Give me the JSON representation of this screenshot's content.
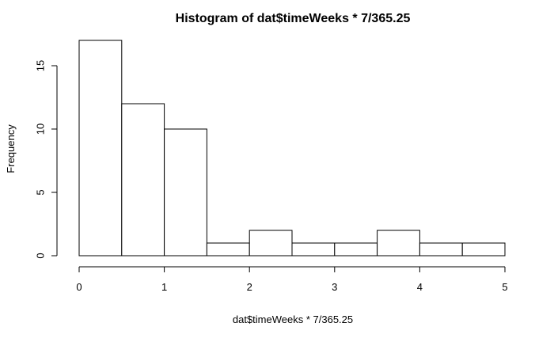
{
  "chart_data": {
    "type": "bar",
    "title": "Histogram of dat$timeWeeks * 7/365.25",
    "xlabel": "dat$timeWeeks * 7/365.25",
    "ylabel": "Frequency",
    "bins": [
      {
        "start": 0.0,
        "end": 0.5,
        "count": 17
      },
      {
        "start": 0.5,
        "end": 1.0,
        "count": 12
      },
      {
        "start": 1.0,
        "end": 1.5,
        "count": 10
      },
      {
        "start": 1.5,
        "end": 2.0,
        "count": 1
      },
      {
        "start": 2.0,
        "end": 2.5,
        "count": 2
      },
      {
        "start": 2.5,
        "end": 3.0,
        "count": 1
      },
      {
        "start": 3.0,
        "end": 3.5,
        "count": 1
      },
      {
        "start": 3.5,
        "end": 4.0,
        "count": 2
      },
      {
        "start": 4.0,
        "end": 4.5,
        "count": 1
      },
      {
        "start": 4.5,
        "end": 5.0,
        "count": 1
      }
    ],
    "xlim": [
      0,
      5
    ],
    "ylim": [
      0,
      17
    ],
    "x_ticks": [
      0,
      1,
      2,
      3,
      4,
      5
    ],
    "y_ticks": [
      0,
      5,
      10,
      15
    ],
    "grid": false,
    "legend": "none"
  }
}
